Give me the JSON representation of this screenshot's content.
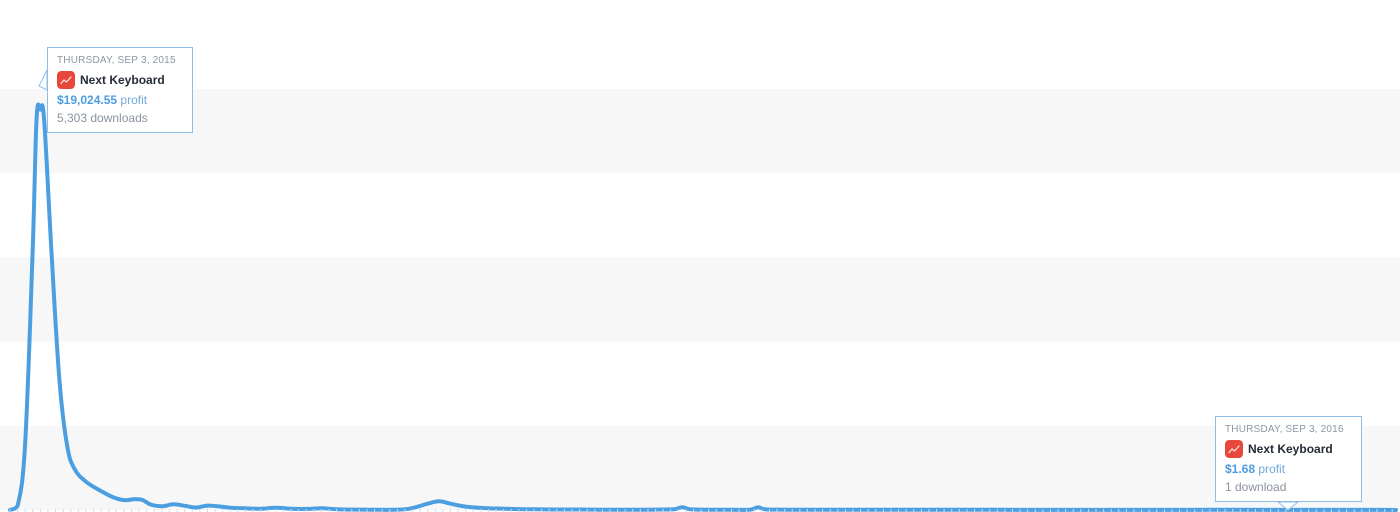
{
  "chart_data": {
    "type": "line",
    "x_start": "2015-09-03",
    "x_end": "2016-09-03",
    "grid": true,
    "series": [
      {
        "color": "#4b9fe1",
        "points": [
          [
            0,
            0
          ],
          [
            2,
            200
          ],
          [
            4,
            3200
          ],
          [
            6,
            12500
          ],
          [
            7,
            18600
          ],
          [
            8,
            19024.55
          ],
          [
            9,
            18500
          ],
          [
            11,
            12000
          ],
          [
            13,
            6200
          ],
          [
            15,
            3100
          ],
          [
            17,
            1950
          ],
          [
            20,
            1350
          ],
          [
            24,
            900
          ],
          [
            27,
            620
          ],
          [
            30,
            470
          ],
          [
            33,
            520
          ],
          [
            35,
            470
          ],
          [
            37,
            260
          ],
          [
            40,
            180
          ],
          [
            43,
            270
          ],
          [
            46,
            200
          ],
          [
            49,
            120
          ],
          [
            52,
            210
          ],
          [
            55,
            170
          ],
          [
            58,
            110
          ],
          [
            62,
            80
          ],
          [
            66,
            60
          ],
          [
            70,
            110
          ],
          [
            74,
            60
          ],
          [
            78,
            50
          ],
          [
            82,
            80
          ],
          [
            86,
            40
          ],
          [
            90,
            20
          ],
          [
            95,
            15
          ],
          [
            100,
            10
          ],
          [
            105,
            55
          ],
          [
            110,
            300
          ],
          [
            113,
            420
          ],
          [
            116,
            300
          ],
          [
            120,
            160
          ],
          [
            125,
            90
          ],
          [
            130,
            60
          ],
          [
            135,
            40
          ],
          [
            140,
            30
          ],
          [
            145,
            25
          ],
          [
            150,
            25
          ],
          [
            155,
            15
          ],
          [
            160,
            15
          ],
          [
            165,
            15
          ],
          [
            170,
            20
          ],
          [
            175,
            40
          ],
          [
            177,
            130
          ],
          [
            179,
            40
          ],
          [
            183,
            15
          ],
          [
            190,
            10
          ],
          [
            195,
            20
          ],
          [
            197,
            130
          ],
          [
            199,
            30
          ],
          [
            205,
            15
          ],
          [
            215,
            10
          ],
          [
            230,
            8
          ],
          [
            245,
            15
          ],
          [
            260,
            8
          ],
          [
            280,
            6
          ],
          [
            300,
            6
          ],
          [
            320,
            8
          ],
          [
            340,
            5
          ],
          [
            355,
            4
          ],
          [
            360,
            3
          ],
          [
            365,
            1.68
          ]
        ]
      }
    ],
    "ylim": [
      0,
      21000
    ],
    "y_gridlines": [
      4000,
      8000,
      12000,
      16000,
      20000
    ],
    "annotations": [
      {
        "day": 8,
        "date_label": "THURSDAY, SEP 3, 2015",
        "app_name": "Next Keyboard",
        "app_icon": "next-keyboard-app-icon",
        "icon_color": "#e8473c",
        "profit_value": "$19,024.55",
        "profit_suffix": "profit",
        "downloads_label": "5,303 downloads"
      },
      {
        "day": 365,
        "date_label": "THURSDAY, SEP 3, 2016",
        "app_name": "Next Keyboard",
        "app_icon": "next-keyboard-app-icon",
        "icon_color": "#e8473c",
        "profit_value": "$1.68",
        "profit_suffix": "profit",
        "downloads_label": "1 download"
      }
    ]
  }
}
